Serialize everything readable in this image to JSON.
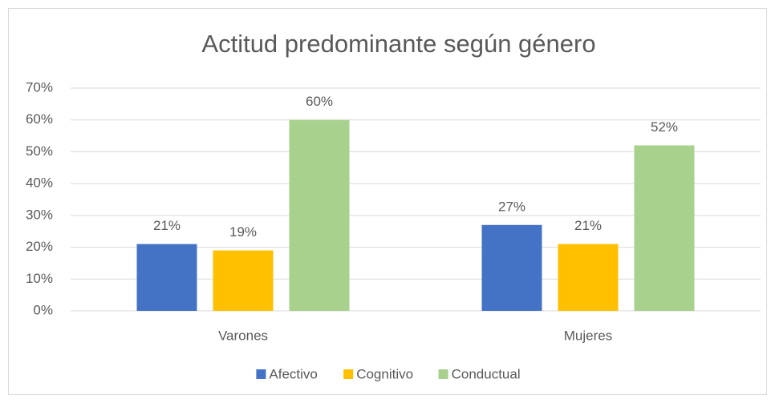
{
  "chart_data": {
    "type": "bar",
    "title": "Actitud predominante según género",
    "categories": [
      "Varones",
      "Mujeres"
    ],
    "series": [
      {
        "name": "Afectivo",
        "color": "#4472c4",
        "values": [
          21,
          27
        ],
        "value_labels": [
          "21%",
          "27%"
        ]
      },
      {
        "name": "Cognitivo",
        "color": "#ffc000",
        "values": [
          19,
          21
        ],
        "value_labels": [
          "19%",
          "21%"
        ]
      },
      {
        "name": "Conductual",
        "color": "#a9d18e",
        "values": [
          60,
          52
        ],
        "value_labels": [
          "60%",
          "52%"
        ]
      }
    ],
    "ylim": [
      0,
      70
    ],
    "yticks": [
      {
        "value": 0,
        "label": "0%"
      },
      {
        "value": 10,
        "label": "10%"
      },
      {
        "value": 20,
        "label": "20%"
      },
      {
        "value": 30,
        "label": "30%"
      },
      {
        "value": 40,
        "label": "40%"
      },
      {
        "value": 50,
        "label": "50%"
      },
      {
        "value": 60,
        "label": "60%"
      },
      {
        "value": 70,
        "label": "70%"
      }
    ],
    "grid": true,
    "legend": "bottom"
  }
}
